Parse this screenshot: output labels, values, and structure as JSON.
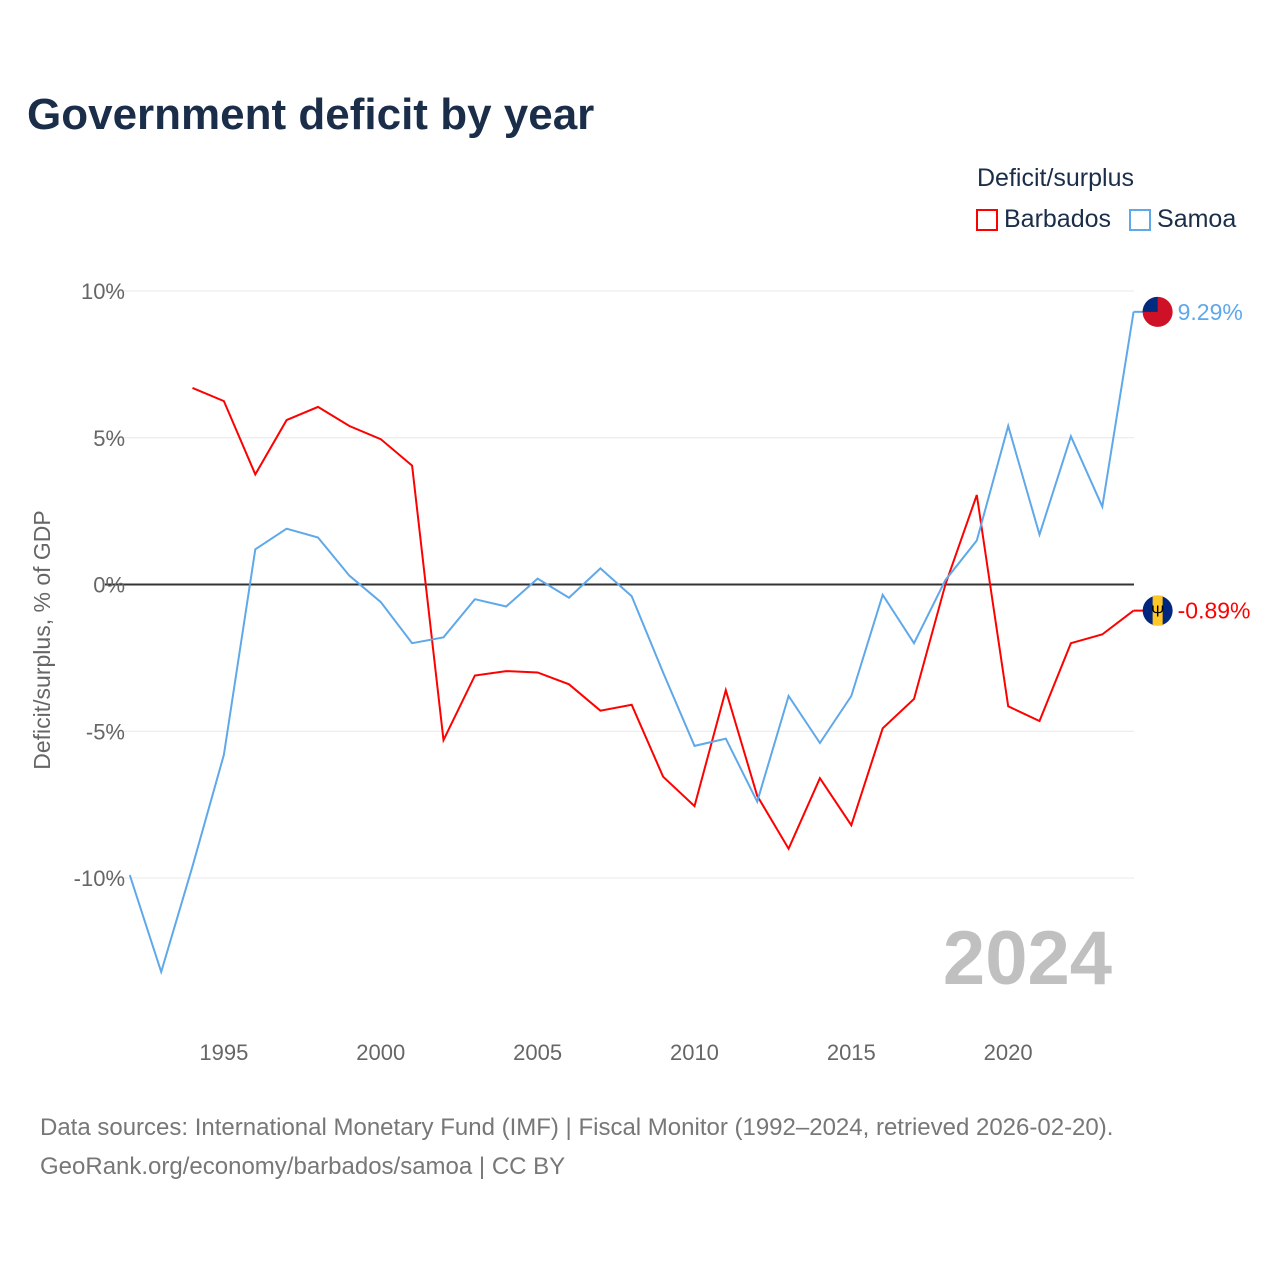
{
  "title": "Government deficit by year",
  "legend": {
    "title": "Deficit/surplus",
    "items": [
      {
        "name": "Barbados",
        "color": "#ff0000"
      },
      {
        "name": "Samoa",
        "color": "#5fa8ea"
      }
    ]
  },
  "year_watermark": "2024",
  "footer": {
    "line1": "Data sources: International Monetary Fund (IMF) | Fiscal Monitor (1992–2024, retrieved 2026-02-20).",
    "line2": "GeoRank.org/economy/barbados/samoa | CC BY"
  },
  "chart_data": {
    "type": "line",
    "title": "Government deficit by year",
    "xlabel": "",
    "ylabel": "Deficit/surplus, % of GDP",
    "xlim": [
      1992,
      2024
    ],
    "ylim": [
      -14,
      10
    ],
    "grid": true,
    "legend_position": "top-right",
    "x_ticks": [
      1995,
      2000,
      2005,
      2010,
      2015,
      2020
    ],
    "x_tick_labels": [
      "1995",
      "2000",
      "2005",
      "2010",
      "2015",
      "2020"
    ],
    "y_ticks": [
      10,
      5,
      0,
      -5,
      -10
    ],
    "y_tick_labels": [
      "10%",
      "5%",
      "0%",
      "-5%",
      "-10%"
    ],
    "series": [
      {
        "name": "Barbados",
        "color": "#ff0000",
        "end_label": "-0.89%",
        "x": [
          1994,
          1995,
          1996,
          1997,
          1998,
          1999,
          2000,
          2001,
          2002,
          2003,
          2004,
          2005,
          2006,
          2007,
          2008,
          2009,
          2010,
          2011,
          2012,
          2013,
          2014,
          2015,
          2016,
          2017,
          2018,
          2019,
          2020,
          2021,
          2022,
          2023,
          2024
        ],
        "values": [
          6.7,
          6.25,
          3.75,
          5.6,
          6.05,
          5.4,
          4.95,
          4.05,
          -5.3,
          -3.1,
          -2.95,
          -3.0,
          -3.4,
          -4.3,
          -4.1,
          -6.55,
          -7.55,
          -3.6,
          -7.2,
          -9.0,
          -6.6,
          -8.2,
          -4.9,
          -3.9,
          0.0,
          3.05,
          -4.15,
          -4.65,
          -2.0,
          -1.7,
          -0.89
        ]
      },
      {
        "name": "Samoa",
        "color": "#5fa8ea",
        "end_label": "9.29%",
        "x": [
          1992,
          1993,
          1994,
          1995,
          1996,
          1997,
          1998,
          1999,
          2000,
          2001,
          2002,
          2003,
          2004,
          2005,
          2006,
          2007,
          2008,
          2009,
          2010,
          2011,
          2012,
          2013,
          2014,
          2015,
          2016,
          2017,
          2018,
          2019,
          2020,
          2021,
          2022,
          2023,
          2024
        ],
        "values": [
          -9.9,
          -13.2,
          -9.6,
          -5.8,
          1.2,
          1.9,
          1.6,
          0.3,
          -0.6,
          -2.0,
          -1.8,
          -0.5,
          -0.75,
          0.2,
          -0.45,
          0.55,
          -0.4,
          -3.0,
          -5.5,
          -5.25,
          -7.4,
          -3.8,
          -5.4,
          -3.8,
          -0.35,
          -2.0,
          0.15,
          1.5,
          5.4,
          1.7,
          5.05,
          2.65,
          9.29
        ]
      }
    ]
  }
}
